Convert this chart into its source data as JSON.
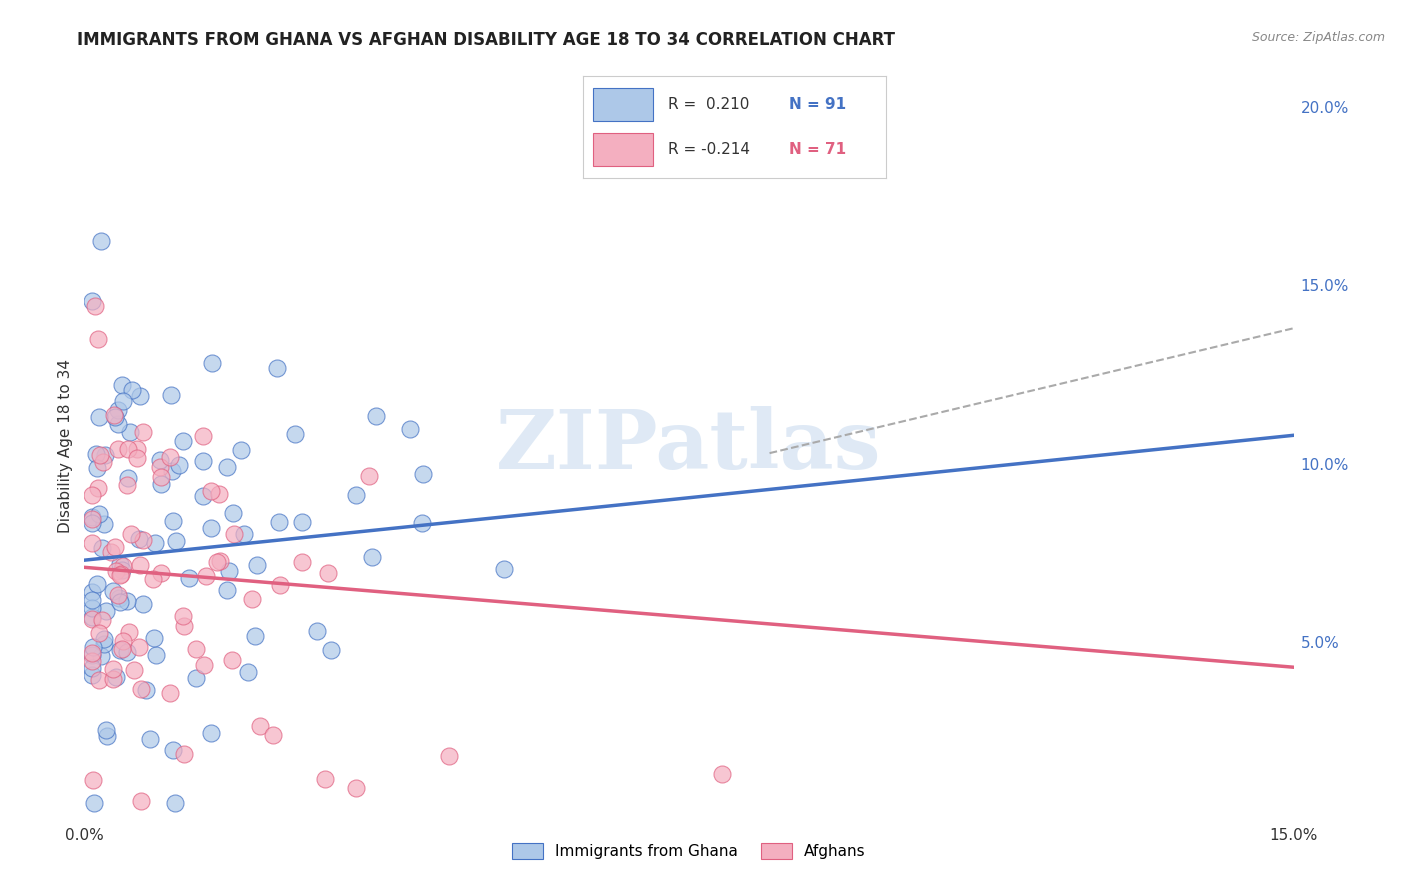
{
  "title": "IMMIGRANTS FROM GHANA VS AFGHAN DISABILITY AGE 18 TO 34 CORRELATION CHART",
  "source": "Source: ZipAtlas.com",
  "ylabel": "Disability Age 18 to 34",
  "xlim": [
    0.0,
    0.15
  ],
  "ylim": [
    0.0,
    0.21
  ],
  "x_tick_positions": [
    0.0,
    0.03,
    0.06,
    0.09,
    0.12,
    0.15
  ],
  "x_tick_labels": [
    "0.0%",
    "",
    "",
    "",
    "",
    "15.0%"
  ],
  "y_tick_positions": [
    0.0,
    0.05,
    0.1,
    0.15,
    0.2
  ],
  "y_tick_labels": [
    "",
    "5.0%",
    "10.0%",
    "15.0%",
    "20.0%"
  ],
  "legend_ghana_R": " 0.210",
  "legend_ghana_N": "91",
  "legend_afghan_R": "-0.214",
  "legend_afghan_N": "71",
  "color_ghana_fill": "#adc8e8",
  "color_afghan_fill": "#f4afc0",
  "color_ghana_edge": "#4472c4",
  "color_afghan_edge": "#e06080",
  "color_ghana_line": "#4472c4",
  "color_afghan_line": "#e06080",
  "color_ext_line": "#aaaaaa",
  "watermark": "ZIPatlas",
  "background_color": "#ffffff",
  "grid_color": "#cccccc",
  "ghana_line_x0": 0.0,
  "ghana_line_x1": 0.15,
  "ghana_line_y0": 0.073,
  "ghana_line_y1": 0.108,
  "afghan_line_x0": 0.0,
  "afghan_line_x1": 0.15,
  "afghan_line_y0": 0.071,
  "afghan_line_y1": 0.043,
  "ext_line_x0": 0.085,
  "ext_line_x1": 0.15,
  "ext_line_y0": 0.103,
  "ext_line_y1": 0.138
}
